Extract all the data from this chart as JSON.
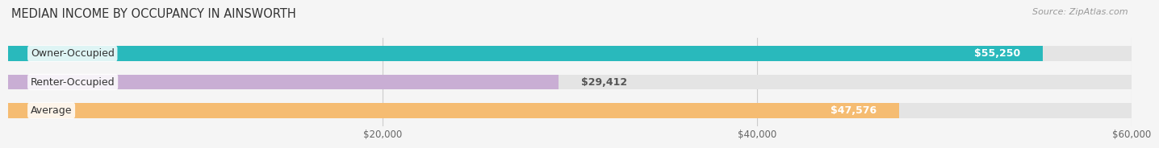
{
  "title": "MEDIAN INCOME BY OCCUPANCY IN AINSWORTH",
  "source": "Source: ZipAtlas.com",
  "categories": [
    "Owner-Occupied",
    "Renter-Occupied",
    "Average"
  ],
  "values": [
    55250,
    29412,
    47576
  ],
  "labels": [
    "$55,250",
    "$29,412",
    "$47,576"
  ],
  "bar_colors": [
    "#29b9bc",
    "#c9aed4",
    "#f5bc72"
  ],
  "bar_bg_color": "#e4e4e4",
  "xlim": [
    0,
    60000
  ],
  "xticks": [
    20000,
    40000,
    60000
  ],
  "xtick_labels": [
    "$20,000",
    "$40,000",
    "$60,000"
  ],
  "title_fontsize": 10.5,
  "source_fontsize": 8,
  "label_fontsize": 9,
  "cat_fontsize": 9,
  "bar_height": 0.52,
  "bar_label_color_inside": "#ffffff",
  "bar_label_color_outside": "#555555",
  "background_color": "#f5f5f5"
}
